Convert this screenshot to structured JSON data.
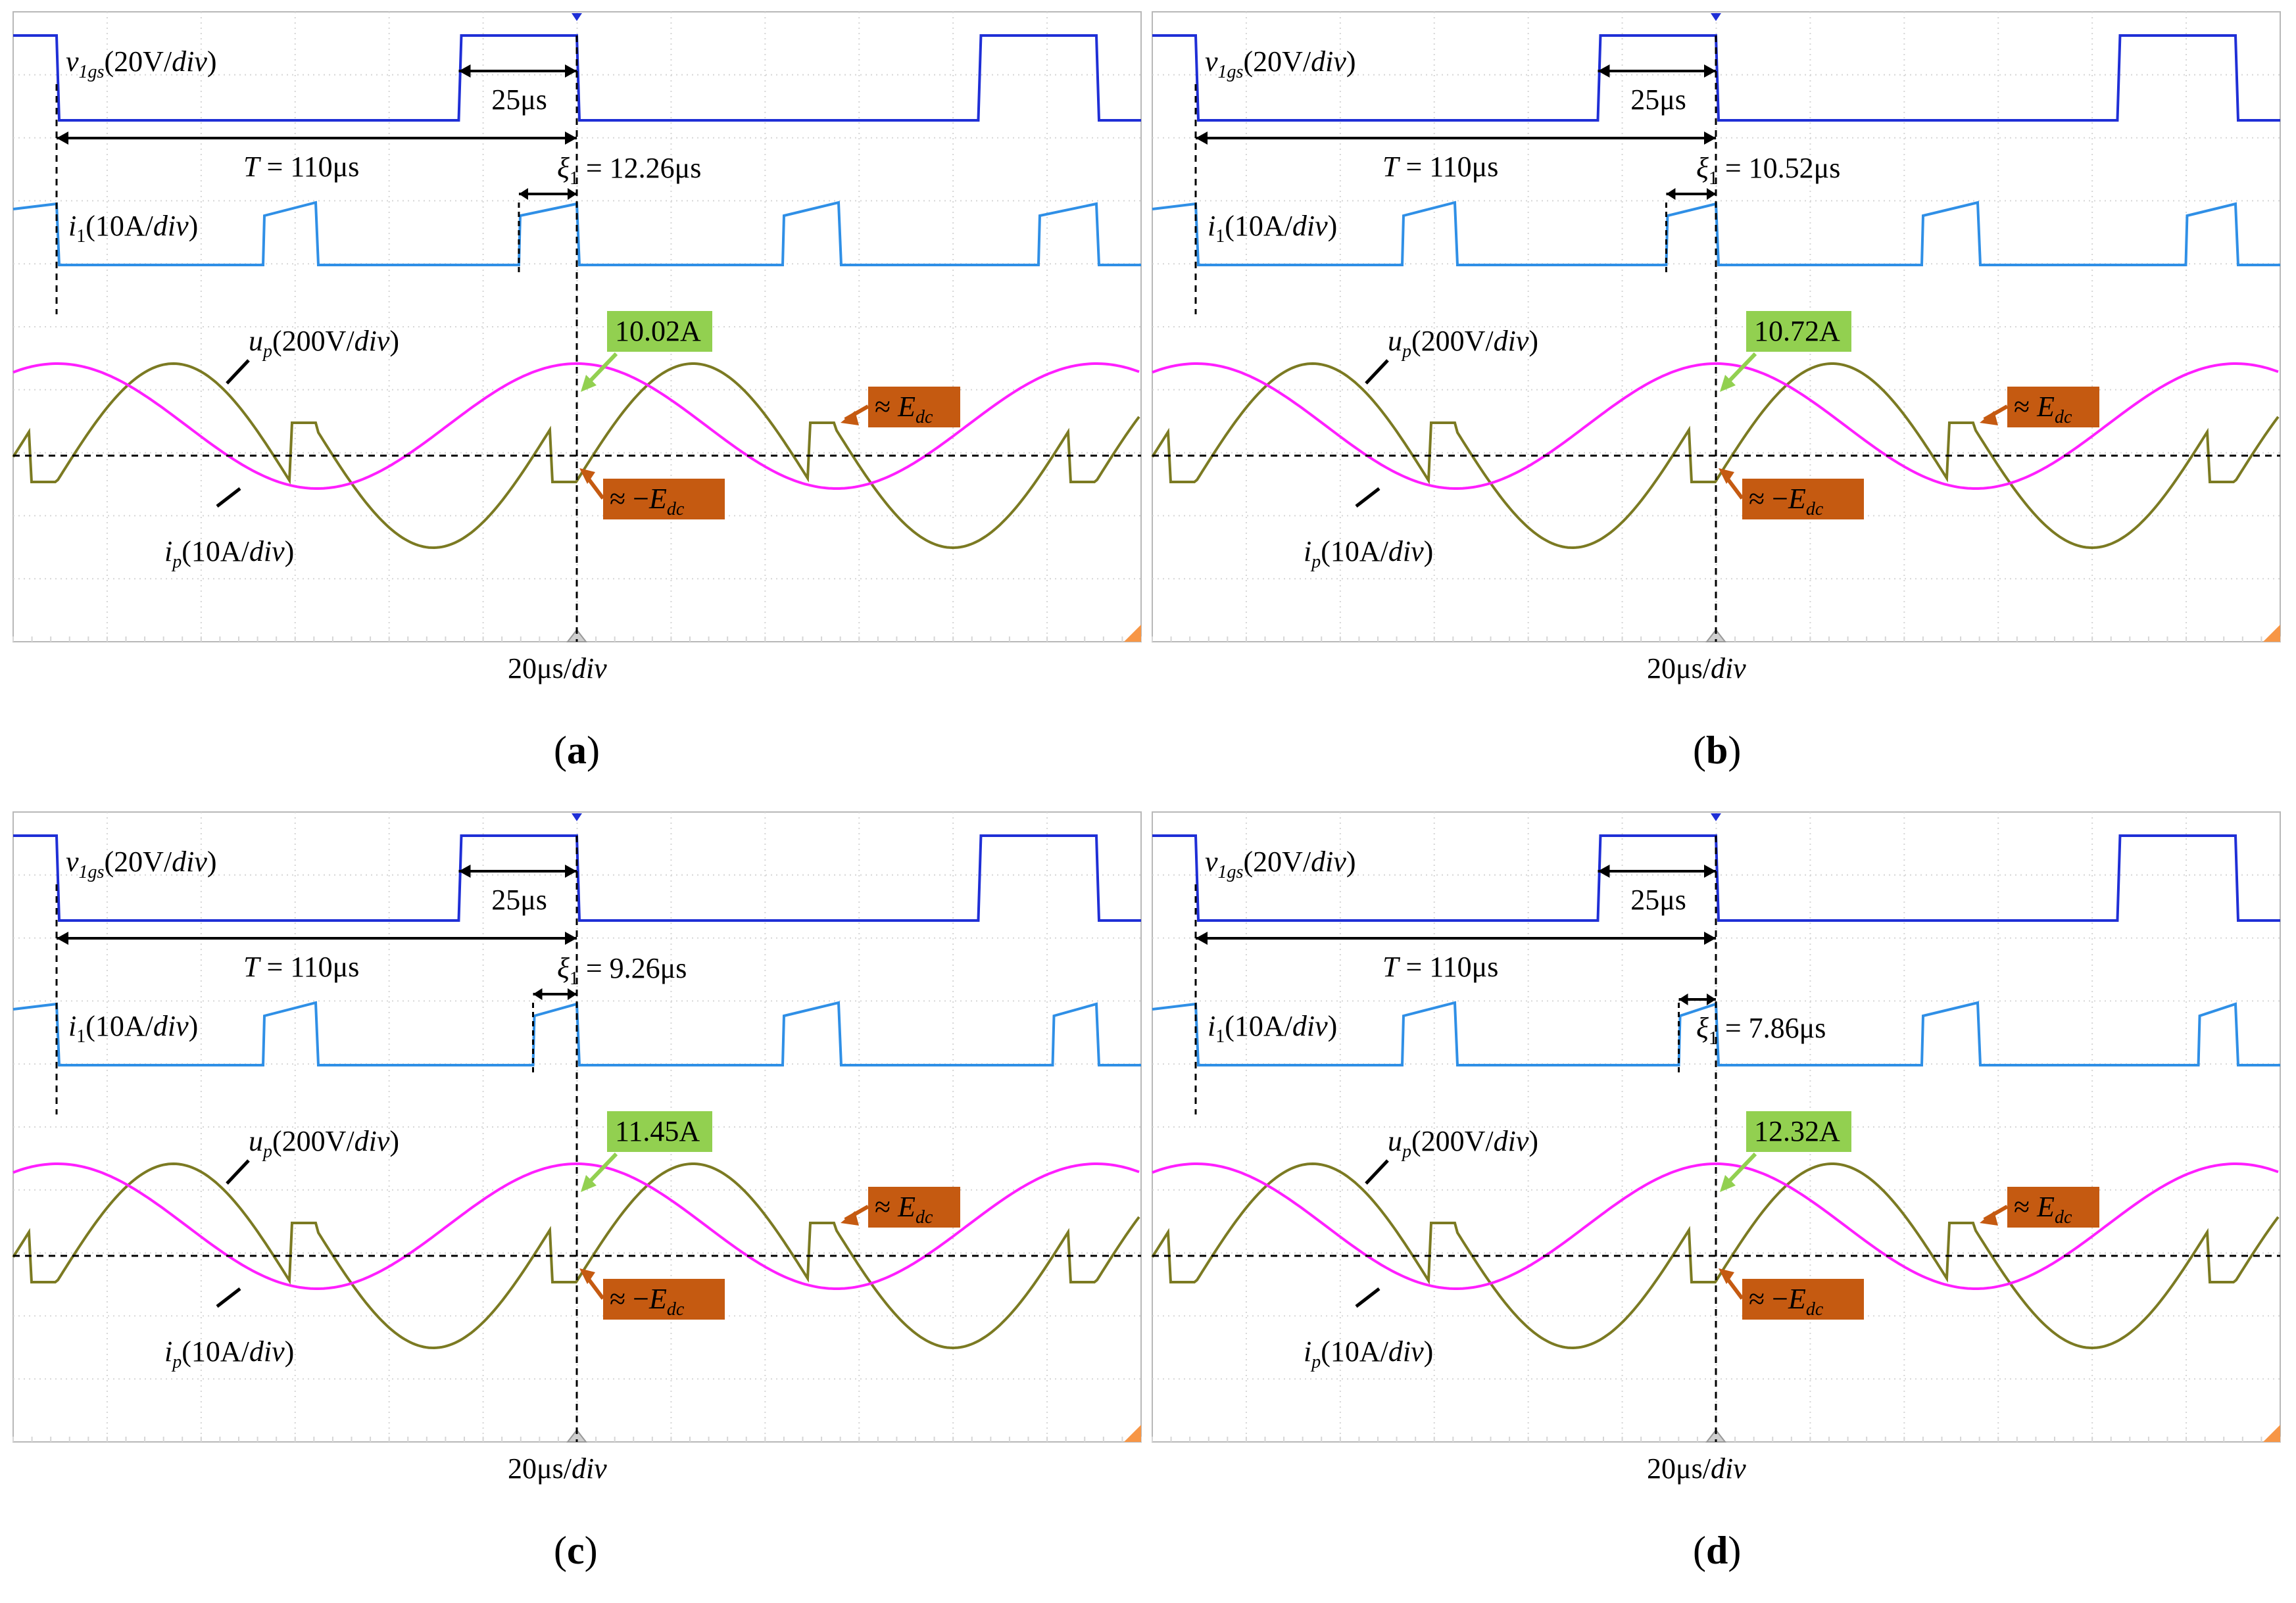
{
  "figure": {
    "panels": [
      {
        "label": "(a)",
        "xi_value": "= 12.26μs",
        "xi_below": false,
        "peak_label": "10.02A"
      },
      {
        "label": "(b)",
        "xi_value": "= 10.52μs",
        "xi_below": false,
        "peak_label": "10.72A"
      },
      {
        "label": "(c)",
        "xi_value": "= 9.26μs",
        "xi_below": false,
        "peak_label": "11.45A"
      },
      {
        "label": "(d)",
        "xi_value": "= 7.86μs",
        "xi_below": true,
        "peak_label": "12.32A"
      }
    ],
    "labels": {
      "v_gs_sym": "v",
      "v_gs_sub": "1gs",
      "v_gs_scale": "(20V/",
      "div": "div",
      "close": ")",
      "i1_sym": "i",
      "i1_sub": "1",
      "i1_scale": "(10A/",
      "up_sym": "u",
      "up_sub": "p",
      "up_scale": "(200V/",
      "ip_sym": "i",
      "ip_sub": "p",
      "ip_scale": "(10A/",
      "period_sym": "T",
      "period_val": " = 110μs",
      "dt_label": "25μs",
      "xi_sym": "ξ",
      "xi_sub": "1",
      "edc_pos_prefix": "≈ ",
      "edc_neg_prefix": "≈ −",
      "edc_sym": "E",
      "edc_sub": "dc",
      "time_scale": "20μs/",
      "time_div": "div"
    }
  },
  "chart_data": [
    {
      "type": "line",
      "title": "(a)",
      "xlabel": "20μs/div",
      "period_us": 110,
      "xi1_us": 12.26,
      "dead_pulse_us": 25,
      "peak_current_A": 10.02,
      "series": [
        {
          "name": "v1gs",
          "scale": "20V/div",
          "color": "#1f2fd6"
        },
        {
          "name": "i1",
          "scale": "10A/div",
          "color": "#2f8fe6"
        },
        {
          "name": "up",
          "scale": "200V/div",
          "color": "#7b7a22"
        },
        {
          "name": "ip",
          "scale": "10A/div",
          "color": "#ff1fff"
        }
      ]
    },
    {
      "type": "line",
      "title": "(b)",
      "xlabel": "20μs/div",
      "period_us": 110,
      "xi1_us": 10.52,
      "dead_pulse_us": 25,
      "peak_current_A": 10.72,
      "series": [
        {
          "name": "v1gs",
          "scale": "20V/div",
          "color": "#1f2fd6"
        },
        {
          "name": "i1",
          "scale": "10A/div",
          "color": "#2f8fe6"
        },
        {
          "name": "up",
          "scale": "200V/div",
          "color": "#7b7a22"
        },
        {
          "name": "ip",
          "scale": "10A/div",
          "color": "#ff1fff"
        }
      ]
    },
    {
      "type": "line",
      "title": "(c)",
      "xlabel": "20μs/div",
      "period_us": 110,
      "xi1_us": 9.26,
      "dead_pulse_us": 25,
      "peak_current_A": 11.45,
      "series": [
        {
          "name": "v1gs",
          "scale": "20V/div",
          "color": "#1f2fd6"
        },
        {
          "name": "i1",
          "scale": "10A/div",
          "color": "#2f8fe6"
        },
        {
          "name": "up",
          "scale": "200V/div",
          "color": "#7b7a22"
        },
        {
          "name": "ip",
          "scale": "10A/div",
          "color": "#ff1fff"
        }
      ]
    },
    {
      "type": "line",
      "title": "(d)",
      "xlabel": "20μs/div",
      "period_us": 110,
      "xi1_us": 7.86,
      "dead_pulse_us": 25,
      "peak_current_A": 12.32,
      "series": [
        {
          "name": "v1gs",
          "scale": "20V/div",
          "color": "#1f2fd6"
        },
        {
          "name": "i1",
          "scale": "10A/div",
          "color": "#2f8fe6"
        },
        {
          "name": "up",
          "scale": "200V/div",
          "color": "#7b7a22"
        },
        {
          "name": "ip",
          "scale": "10A/div",
          "color": "#ff1fff"
        }
      ]
    }
  ],
  "colors": {
    "v1gs": "#1f2fd6",
    "i1": "#2f8fe6",
    "up": "#7b7a22",
    "ip": "#ff1fff",
    "green_box": "#92d050",
    "green_arrow": "#92d050",
    "orange_box": "#c55a11",
    "orange_arrow": "#c55a11",
    "grid": "#d6d6d6",
    "frame": "#b8b8b8"
  }
}
